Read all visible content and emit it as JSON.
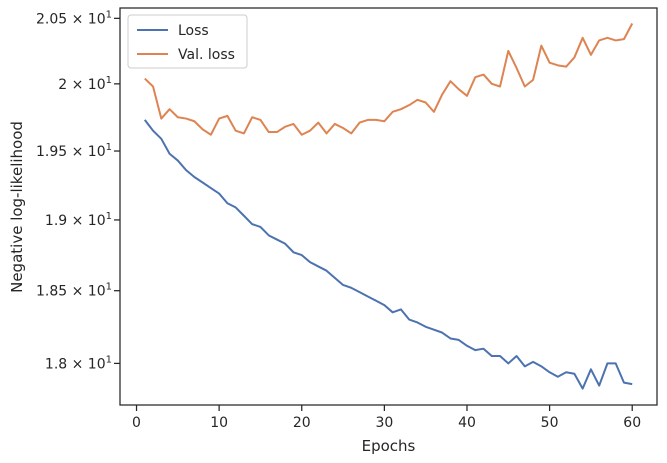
{
  "chart_data": {
    "type": "line",
    "xlabel": "Epochs",
    "ylabel": "Negative log-likelihood",
    "xlim": [
      -2,
      63
    ],
    "ylim": [
      17.72,
      20.58
    ],
    "y_scale": "log",
    "grid": false,
    "legend_position": "top-left",
    "x_ticks": [
      {
        "value": 0,
        "label": "0"
      },
      {
        "value": 10,
        "label": "10"
      },
      {
        "value": 20,
        "label": "20"
      },
      {
        "value": 30,
        "label": "30"
      },
      {
        "value": 40,
        "label": "40"
      },
      {
        "value": 50,
        "label": "50"
      },
      {
        "value": 60,
        "label": "60"
      }
    ],
    "y_ticks": [
      {
        "value": 18.0,
        "mantissa": "1.8",
        "exponent": "1"
      },
      {
        "value": 18.5,
        "mantissa": "1.85",
        "exponent": "1"
      },
      {
        "value": 19.0,
        "mantissa": "1.9",
        "exponent": "1"
      },
      {
        "value": 19.5,
        "mantissa": "1.95",
        "exponent": "1"
      },
      {
        "value": 20.0,
        "mantissa": "2",
        "exponent": "1"
      },
      {
        "value": 20.5,
        "mantissa": "2.05",
        "exponent": "1"
      }
    ],
    "x": [
      1,
      2,
      3,
      4,
      5,
      6,
      7,
      8,
      9,
      10,
      11,
      12,
      13,
      14,
      15,
      16,
      17,
      18,
      19,
      20,
      21,
      22,
      23,
      24,
      25,
      26,
      27,
      28,
      29,
      30,
      31,
      32,
      33,
      34,
      35,
      36,
      37,
      38,
      39,
      40,
      41,
      42,
      43,
      44,
      45,
      46,
      47,
      48,
      49,
      50,
      51,
      52,
      53,
      54,
      55,
      56,
      57,
      58,
      59,
      60
    ],
    "series": [
      {
        "name": "Loss",
        "color": "#4c72b0",
        "values": [
          19.73,
          19.65,
          19.59,
          19.48,
          19.43,
          19.36,
          19.31,
          19.27,
          19.23,
          19.19,
          19.12,
          19.09,
          19.03,
          18.97,
          18.95,
          18.89,
          18.86,
          18.83,
          18.77,
          18.75,
          18.7,
          18.67,
          18.64,
          18.59,
          18.54,
          18.52,
          18.49,
          18.46,
          18.43,
          18.4,
          18.35,
          18.37,
          18.3,
          18.28,
          18.25,
          18.23,
          18.21,
          18.17,
          18.16,
          18.12,
          18.09,
          18.1,
          18.05,
          18.05,
          18.0,
          18.05,
          17.98,
          18.01,
          17.98,
          17.94,
          17.91,
          17.94,
          17.93,
          17.83,
          17.96,
          17.85,
          18.0,
          18.0,
          17.87,
          17.86
        ]
      },
      {
        "name": "Val. loss",
        "color": "#dd8452",
        "values": [
          20.04,
          19.98,
          19.74,
          19.81,
          19.75,
          19.74,
          19.72,
          19.66,
          19.62,
          19.74,
          19.76,
          19.65,
          19.63,
          19.75,
          19.73,
          19.64,
          19.64,
          19.68,
          19.7,
          19.62,
          19.65,
          19.71,
          19.63,
          19.7,
          19.67,
          19.63,
          19.71,
          19.73,
          19.73,
          19.72,
          19.79,
          19.81,
          19.84,
          19.88,
          19.86,
          19.79,
          19.92,
          20.02,
          19.96,
          19.91,
          20.05,
          20.07,
          20.0,
          19.98,
          20.25,
          20.12,
          19.98,
          20.03,
          20.29,
          20.16,
          20.14,
          20.13,
          20.2,
          20.35,
          20.22,
          20.33,
          20.35,
          20.33,
          20.34,
          20.46
        ]
      }
    ]
  }
}
